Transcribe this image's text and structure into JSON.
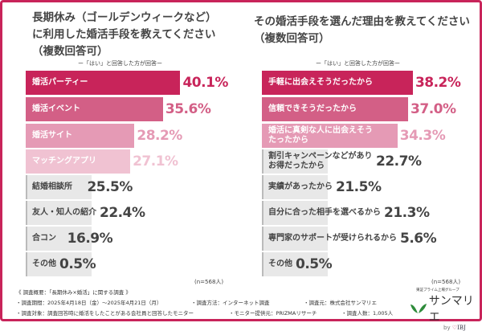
{
  "colors": {
    "border": "#c8245a",
    "bars": [
      "#c8245a",
      "#d35f86",
      "#e59ab5",
      "#f0c2d2"
    ],
    "gray": "#e8e8e8",
    "gray_text": "#444444"
  },
  "chart_data": [
    {
      "type": "bar",
      "orientation": "horizontal",
      "title": "長期休み（ゴールデンウィークなど）に利用した婚活手段を教えてください（複数回答可）",
      "title_lines": [
        "長期休み（ゴールデンウィークなど）",
        "に利用した婚活手段を教えてください",
        "（複数回答可）"
      ],
      "subtitle": "ー「はい」と回答した方が回答ー",
      "categories": [
        "婚活パーティー",
        "婚活イベント",
        "婚活サイト",
        "マッチングアプリ",
        "結婚相談所",
        "友人・知人の紹介",
        "合コン",
        "その他"
      ],
      "values": [
        40.1,
        35.6,
        28.2,
        27.1,
        25.5,
        22.4,
        16.9,
        0.5
      ],
      "labels": [
        "40.1%",
        "35.6%",
        "28.2%",
        "27.1%",
        "25.5%",
        "22.4%",
        "16.9%",
        "0.5%"
      ],
      "unit": "%",
      "n": "(n=568人)"
    },
    {
      "type": "bar",
      "orientation": "horizontal",
      "title": "その婚活手段を選んだ理由を教えてください（複数回答可）",
      "title_lines": [
        "その婚活手段を選んだ理由を教えてください",
        "（複数回答可）"
      ],
      "subtitle": "ー「はい」と回答した方が回答ー",
      "categories": [
        "手軽に出会えそうだったから",
        "信頼できそうだったから",
        "婚活に真剣な人に出会えそうだったから",
        "割引キャンペーンなどがありお得だったから",
        "実績があったから",
        "自分に合った相手を選べるから",
        "専門家のサポートが受けられるから",
        "その他"
      ],
      "category_lines": [
        [
          "手軽に出会えそうだったから"
        ],
        [
          "信頼できそうだったから"
        ],
        [
          "婚活に真剣な人に出会えそう",
          "たったから"
        ],
        [
          "割引キャンペーンなどがあり",
          "お得だったから"
        ],
        [
          "実績があったから"
        ],
        [
          "自分に合った相手を選べるから"
        ],
        [
          "専門家のサポートが受けられるから"
        ],
        [
          "その他"
        ]
      ],
      "values": [
        38.2,
        37.0,
        34.3,
        22.7,
        21.5,
        21.3,
        5.6,
        0.5
      ],
      "labels": [
        "38.2%",
        "37.0%",
        "34.3%",
        "22.7%",
        "21.5%",
        "21.3%",
        "5.6%",
        "0.5%"
      ],
      "unit": "%",
      "n": "(n=568人)"
    }
  ],
  "footer": {
    "heading": "《 調査概要：「長期休み×婚活」に関する調査 》",
    "line1": [
      "・調査期間：2025年4月18日（金）～2025年4月21日（月）",
      "・調査方法：インターネット調査",
      "・調査元：株式会社サンマリエ"
    ],
    "line2": [
      "・調査対象：調査回答時に婚活をしたことがある会社員と回答したモニター",
      "・モニター提供元：PRIZMAリサーチ",
      "・調査人数：1,005人"
    ]
  },
  "logo": {
    "tagline": "東証プライム上場グループ",
    "name": "サンマリエ",
    "by": "by",
    "ibj": "IBJ"
  }
}
